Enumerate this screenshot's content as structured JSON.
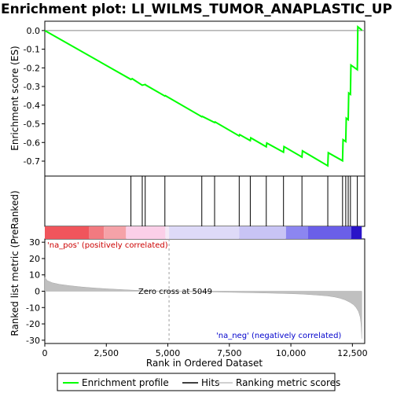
{
  "chart_data": {
    "type": "line",
    "title": "Enrichment plot: LI_WILMS_TUMOR_ANAPLASTIC_UP",
    "xlabel": "Rank in Ordered Dataset",
    "xlim": [
      0,
      13000
    ],
    "x_ticks": [
      0,
      2500,
      5000,
      7500,
      10000,
      12500
    ],
    "x_tick_labels": [
      "0",
      "2,500",
      "5,000",
      "7,500",
      "10,000",
      "12,500"
    ],
    "es_panel": {
      "ylabel": "Enrichment score (ES)",
      "ylim": [
        -0.78,
        0.05
      ],
      "y_ticks": [
        0.0,
        -0.1,
        -0.2,
        -0.3,
        -0.4,
        -0.5,
        -0.6,
        -0.7
      ],
      "y_tick_labels": [
        "0.0",
        "-0.1",
        "-0.2",
        "-0.3",
        "-0.4",
        "-0.5",
        "-0.6",
        "-0.7"
      ],
      "zero_line": true
    },
    "rank_panel": {
      "ylabel": "Ranked list metric (PreRanked)",
      "ylim": [
        -32,
        32
      ],
      "y_ticks": [
        30,
        20,
        10,
        0,
        -10,
        -20,
        -30
      ],
      "y_tick_labels": [
        "30",
        "20",
        "10",
        "0",
        "-10",
        "-20",
        "-30"
      ],
      "zero_cross_label": "Zero cross at 5049",
      "zero_cross": 5049,
      "pos_label": "'na_pos' (positively correlated)",
      "neg_label": "'na_neg' (negatively correlated)",
      "curve": [
        [
          0,
          8.5
        ],
        [
          100,
          6.5
        ],
        [
          300,
          5.2
        ],
        [
          600,
          4.2
        ],
        [
          1000,
          3.4
        ],
        [
          1500,
          2.6
        ],
        [
          2000,
          2.0
        ],
        [
          2500,
          1.5
        ],
        [
          3000,
          1.1
        ],
        [
          3500,
          0.7
        ],
        [
          4000,
          0.4
        ],
        [
          4500,
          0.2
        ],
        [
          5049,
          0.0
        ],
        [
          6000,
          -0.3
        ],
        [
          7000,
          -0.5
        ],
        [
          8000,
          -0.8
        ],
        [
          9000,
          -1.1
        ],
        [
          10000,
          -1.5
        ],
        [
          10500,
          -1.8
        ],
        [
          11000,
          -2.3
        ],
        [
          11500,
          -2.9
        ],
        [
          11800,
          -3.6
        ],
        [
          12000,
          -4.3
        ],
        [
          12200,
          -5.3
        ],
        [
          12400,
          -6.8
        ],
        [
          12550,
          -8.3
        ],
        [
          12650,
          -10.0
        ],
        [
          12750,
          -12.5
        ],
        [
          12820,
          -16.0
        ],
        [
          12850,
          -20.0
        ],
        [
          12870,
          -25.0
        ],
        [
          12880,
          -29.0
        ]
      ]
    },
    "series": [
      {
        "name": "Enrichment profile",
        "color": "#00ff00",
        "points": [
          [
            0,
            0.0
          ],
          [
            3500,
            -0.262
          ],
          [
            3550,
            -0.258
          ],
          [
            3960,
            -0.293
          ],
          [
            4080,
            -0.289
          ],
          [
            4100,
            -0.292
          ],
          [
            4880,
            -0.351
          ],
          [
            4900,
            -0.349
          ],
          [
            6380,
            -0.462
          ],
          [
            6400,
            -0.46
          ],
          [
            6900,
            -0.493
          ],
          [
            6920,
            -0.49
          ],
          [
            7900,
            -0.565
          ],
          [
            7920,
            -0.558
          ],
          [
            8350,
            -0.59
          ],
          [
            8370,
            -0.575
          ],
          [
            9000,
            -0.623
          ],
          [
            9020,
            -0.603
          ],
          [
            9700,
            -0.652
          ],
          [
            9720,
            -0.622
          ],
          [
            10450,
            -0.678
          ],
          [
            10470,
            -0.645
          ],
          [
            11500,
            -0.725
          ],
          [
            11520,
            -0.655
          ],
          [
            12100,
            -0.698
          ],
          [
            12120,
            -0.585
          ],
          [
            12230,
            -0.595
          ],
          [
            12250,
            -0.47
          ],
          [
            12330,
            -0.478
          ],
          [
            12350,
            -0.335
          ],
          [
            12420,
            -0.342
          ],
          [
            12440,
            -0.185
          ],
          [
            12700,
            -0.21
          ],
          [
            12720,
            0.02
          ],
          [
            12860,
            0.005
          ],
          [
            12880,
            0.0
          ]
        ]
      }
    ],
    "hits": [
      3500,
      3960,
      4080,
      4880,
      6380,
      6900,
      7900,
      8350,
      9000,
      9700,
      10450,
      11500,
      12100,
      12230,
      12330,
      12420,
      12700
    ],
    "color_bar": {
      "segments": [
        {
          "from": 0,
          "to": 1800,
          "color": "#f0555c"
        },
        {
          "from": 1800,
          "to": 2400,
          "color": "#f27a80"
        },
        {
          "from": 2400,
          "to": 3300,
          "color": "#f5a2a8"
        },
        {
          "from": 3300,
          "to": 4900,
          "color": "#fbcfe8"
        },
        {
          "from": 4900,
          "to": 5050,
          "color": "#f4e9f6"
        },
        {
          "from": 5050,
          "to": 7900,
          "color": "#dedaf8"
        },
        {
          "from": 7900,
          "to": 9800,
          "color": "#c8c4f5"
        },
        {
          "from": 9800,
          "to": 10700,
          "color": "#8c86f0"
        },
        {
          "from": 10700,
          "to": 12450,
          "color": "#6a5fe8"
        },
        {
          "from": 12450,
          "to": 12880,
          "color": "#2a14c8"
        }
      ]
    },
    "legend": {
      "placement": "bottom",
      "items": [
        {
          "label": "Enrichment profile",
          "color": "#00ff00",
          "kind": "line"
        },
        {
          "label": "Hits",
          "color": "#000000",
          "kind": "line"
        },
        {
          "label": "Ranking metric scores",
          "color": "#c0c0c0",
          "kind": "line"
        }
      ]
    },
    "colors": {
      "profile": "#00ff00",
      "hits": "#000000",
      "metric_fill": "#c0c0c0",
      "zero_cross_line": "#a0a0a0"
    }
  }
}
